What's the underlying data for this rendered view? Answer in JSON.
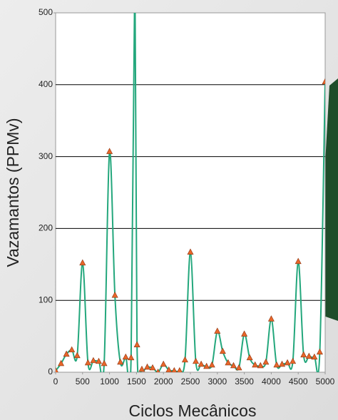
{
  "chart_data": {
    "type": "line",
    "xlabel": "Ciclos Mecânicos",
    "ylabel": "Vazamantos (PPMv)",
    "x": [
      0,
      100,
      200,
      300,
      400,
      500,
      600,
      700,
      800,
      900,
      1000,
      1100,
      1200,
      1300,
      1400,
      1470,
      1510,
      1600,
      1700,
      1800,
      1900,
      2000,
      2100,
      2200,
      2300,
      2400,
      2500,
      2600,
      2700,
      2800,
      2900,
      3000,
      3100,
      3200,
      3300,
      3400,
      3500,
      3600,
      3700,
      3800,
      3900,
      4000,
      4100,
      4200,
      4300,
      4400,
      4500,
      4600,
      4700,
      4800,
      4900,
      5000
    ],
    "series": [
      {
        "color": "#23a77c",
        "marker_color": "#e8662a",
        "values": [
          2,
          12,
          25,
          31,
          23,
          152,
          13,
          16,
          15,
          12,
          307,
          107,
          14,
          21,
          20,
          560,
          38,
          4,
          7,
          6,
          0,
          11,
          3,
          2,
          2,
          17,
          167,
          15,
          11,
          8,
          10,
          57,
          29,
          13,
          9,
          6,
          53,
          20,
          10,
          9,
          14,
          74,
          10,
          11,
          13,
          15,
          154,
          24,
          22,
          21,
          28,
          404
        ]
      }
    ],
    "xlim": [
      0,
      5000
    ],
    "xticks": [
      0,
      500,
      1000,
      1500,
      2000,
      2500,
      3000,
      3500,
      4000,
      4500,
      5000
    ],
    "ylim": [
      0,
      500
    ],
    "yticks": [
      0,
      100,
      200,
      300,
      400,
      500
    ],
    "grid": true
  }
}
